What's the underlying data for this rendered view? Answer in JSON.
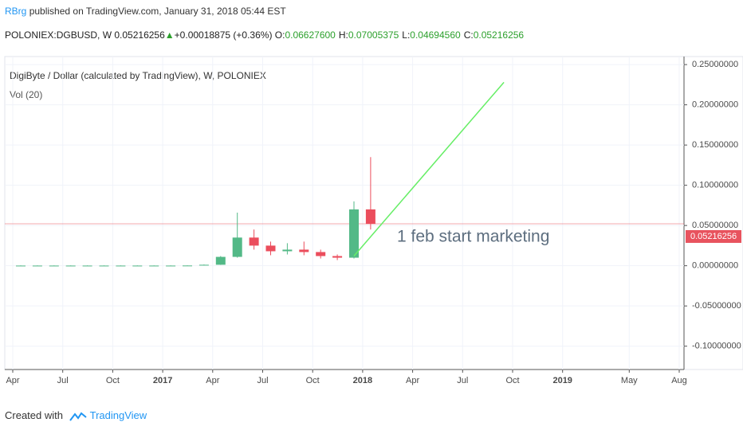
{
  "header": {
    "author": "RBrg",
    "published": "published on TradingView.com, January 31, 2018 05:44 EST",
    "symbol": "POLONIEX:DGBUSD, W",
    "price": "0.05216256",
    "change": "+0.00018875 (+0.36%)",
    "ohlc": [
      {
        "label": "O:",
        "value": "0.06627600"
      },
      {
        "label": "H:",
        "value": "0.07005375"
      },
      {
        "label": "L:",
        "value": "0.04694560"
      },
      {
        "label": "C:",
        "value": "0.05216256"
      }
    ]
  },
  "chart_data": {
    "type": "candlestick",
    "title": "DigiByte / Dollar (calculated by TradingView), W, POLONIEX",
    "subtitle": "Vol (20)",
    "annotation": "1 feb start marketing",
    "x": [
      "2016-04",
      "2016-05",
      "2016-06",
      "2016-07",
      "2016-08",
      "2016-09",
      "2016-10",
      "2016-11",
      "2016-12",
      "2017-01",
      "2017-02",
      "2017-03",
      "2017-04",
      "2017-05",
      "2017-06",
      "2017-07",
      "2017-08",
      "2017-09",
      "2017-10",
      "2017-11",
      "2017-12",
      "2018-01"
    ],
    "open": [
      0.0002,
      0.0002,
      0.0002,
      0.0002,
      0.0002,
      0.0002,
      0.0002,
      0.0002,
      0.0002,
      0.0002,
      0.0002,
      0.0003,
      0.0012,
      0.011,
      0.035,
      0.025,
      0.018,
      0.02,
      0.017,
      0.012,
      0.01,
      0.07
    ],
    "high": [
      0.0004,
      0.0004,
      0.0004,
      0.0004,
      0.0004,
      0.0004,
      0.0004,
      0.0004,
      0.0004,
      0.0004,
      0.0004,
      0.0015,
      0.012,
      0.066,
      0.045,
      0.03,
      0.028,
      0.03,
      0.02,
      0.014,
      0.08,
      0.135
    ],
    "low": [
      0.0001,
      0.0001,
      0.0001,
      0.0001,
      0.0001,
      0.0001,
      0.0001,
      0.0001,
      0.0001,
      0.0001,
      0.0001,
      0.0002,
      0.001,
      0.01,
      0.02,
      0.013,
      0.014,
      0.013,
      0.009,
      0.007,
      0.009,
      0.045
    ],
    "close": [
      0.0002,
      0.0002,
      0.0002,
      0.0002,
      0.0002,
      0.0002,
      0.0002,
      0.0002,
      0.0002,
      0.0002,
      0.0003,
      0.0012,
      0.011,
      0.035,
      0.025,
      0.018,
      0.02,
      0.017,
      0.012,
      0.01,
      0.07,
      0.052
    ],
    "up_color": "#53b987",
    "down_color": "#eb4d5c",
    "trend_line": {
      "x": [
        "2017-12",
        "2018-09"
      ],
      "values": [
        0.012,
        0.228
      ],
      "color": "#66ee66"
    },
    "last_price": 0.05216256,
    "last_price_color": "#e8535e",
    "ylim": [
      -0.13,
      0.26
    ],
    "yticks": [
      {
        "value": 0.25,
        "label": "0.25000000"
      },
      {
        "value": 0.2,
        "label": "0.20000000"
      },
      {
        "value": 0.15,
        "label": "0.15000000"
      },
      {
        "value": 0.1,
        "label": "0.10000000"
      },
      {
        "value": 0.05,
        "label": "0.05000000"
      },
      {
        "value": 0,
        "label": "0.00000000"
      },
      {
        "value": -0.05,
        "label": "-0.05000000"
      },
      {
        "value": -0.1,
        "label": "-0.10000000"
      }
    ],
    "xticks": [
      {
        "value": "2016-04",
        "label": "Apr"
      },
      {
        "value": "2016-07",
        "label": "Jul"
      },
      {
        "value": "2016-10",
        "label": "Oct"
      },
      {
        "value": "2017-01",
        "label": "2017"
      },
      {
        "value": "2017-04",
        "label": "Apr"
      },
      {
        "value": "2017-07",
        "label": "Jul"
      },
      {
        "value": "2017-10",
        "label": "Oct"
      },
      {
        "value": "2018-01",
        "label": "2018"
      },
      {
        "value": "2018-04",
        "label": "Apr"
      },
      {
        "value": "2018-07",
        "label": "Jul"
      },
      {
        "value": "2018-10",
        "label": "Oct"
      },
      {
        "value": "2019-01",
        "label": "2019"
      },
      {
        "value": "2019-05",
        "label": "May"
      },
      {
        "value": "2019-08",
        "label": "Aug"
      }
    ],
    "grid": true
  },
  "footer": {
    "created": "Created with",
    "brand": "TradingView"
  }
}
